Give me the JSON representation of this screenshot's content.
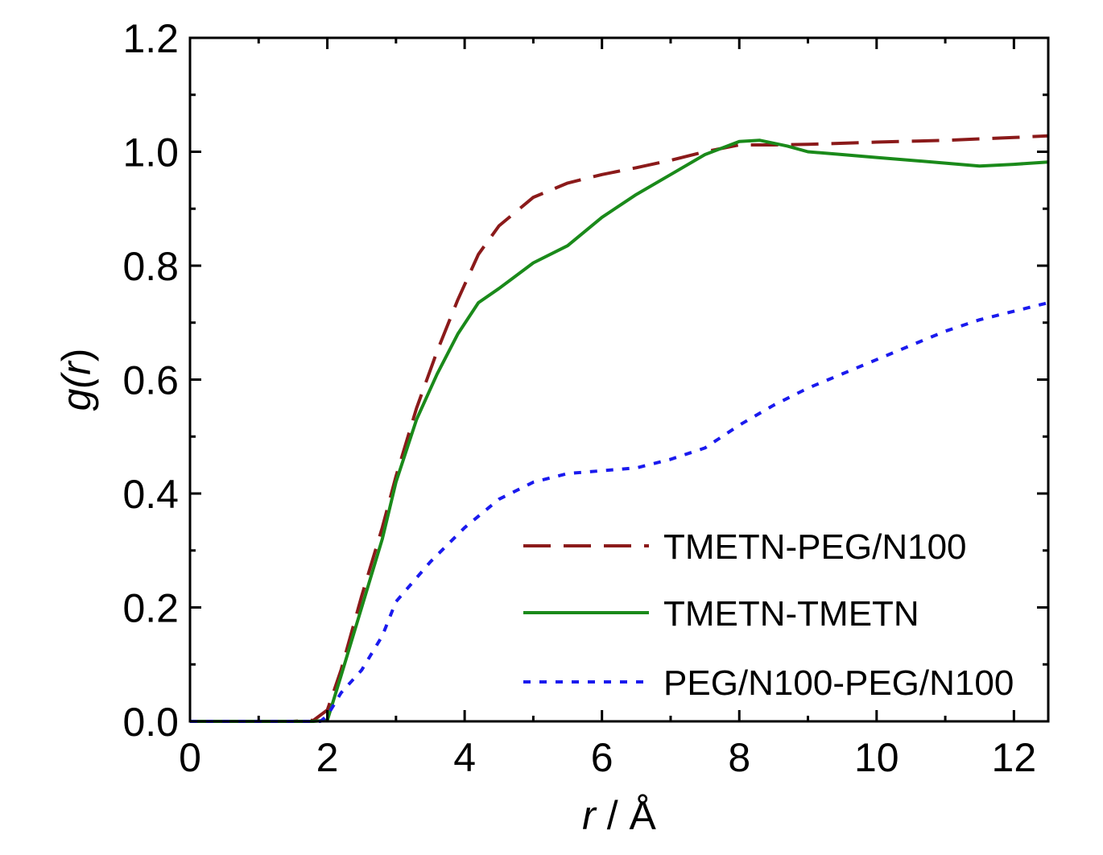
{
  "chart_data": {
    "type": "line",
    "title": "",
    "xlabel": {
      "var": "r",
      "rest": " / Å"
    },
    "ylabel": {
      "pre": "g(",
      "var": "r",
      "post": ")"
    },
    "xlim": [
      0,
      12.5
    ],
    "ylim": [
      0,
      1.2
    ],
    "xticks": [
      0,
      2,
      4,
      6,
      8,
      10,
      12
    ],
    "xtick_labels": [
      "0",
      "2",
      "4",
      "6",
      "8",
      "10",
      "12"
    ],
    "yticks": [
      0,
      0.2,
      0.4,
      0.6,
      0.8,
      1.0,
      1.2
    ],
    "ytick_labels": [
      "0.0",
      "0.2",
      "0.4",
      "0.6",
      "0.8",
      "1.0",
      "1.2"
    ],
    "grid": false,
    "legend_position": "lower-right",
    "series": [
      {
        "name": "TMETN-PEG/N100",
        "color": "#8b1a1a",
        "style": "dashed",
        "x": [
          0,
          1.5,
          1.8,
          2.0,
          2.2,
          2.5,
          2.8,
          3.0,
          3.3,
          3.6,
          3.9,
          4.2,
          4.5,
          5.0,
          5.5,
          6.0,
          6.5,
          7.0,
          7.5,
          8.0,
          8.5,
          9.0,
          10.0,
          11.0,
          12.0,
          12.5
        ],
        "y": [
          0,
          0,
          0.002,
          0.02,
          0.09,
          0.22,
          0.34,
          0.43,
          0.55,
          0.65,
          0.74,
          0.82,
          0.87,
          0.92,
          0.945,
          0.96,
          0.972,
          0.985,
          1.0,
          1.012,
          1.012,
          1.013,
          1.017,
          1.02,
          1.025,
          1.028
        ]
      },
      {
        "name": "TMETN-TMETN",
        "color": "#1a8a1a",
        "style": "solid",
        "x": [
          0,
          1.8,
          2.0,
          2.2,
          2.5,
          2.8,
          3.0,
          3.3,
          3.6,
          3.9,
          4.2,
          4.5,
          5.0,
          5.5,
          6.0,
          6.5,
          7.0,
          7.5,
          8.0,
          8.3,
          8.7,
          9.0,
          9.5,
          10.0,
          11.0,
          11.5,
          12.0,
          12.5
        ],
        "y": [
          0,
          0,
          0.002,
          0.08,
          0.2,
          0.32,
          0.42,
          0.53,
          0.61,
          0.68,
          0.735,
          0.76,
          0.805,
          0.835,
          0.885,
          0.925,
          0.96,
          0.995,
          1.018,
          1.02,
          1.01,
          1.0,
          0.995,
          0.99,
          0.98,
          0.975,
          0.978,
          0.982
        ]
      },
      {
        "name": "PEG/N100-PEG/N100",
        "color": "#1a1aee",
        "style": "dotted",
        "x": [
          0,
          1.9,
          2.0,
          2.2,
          2.5,
          2.8,
          3.0,
          3.5,
          4.0,
          4.5,
          5.0,
          5.5,
          6.0,
          6.5,
          7.0,
          7.5,
          8.0,
          8.5,
          9.0,
          9.5,
          10.0,
          10.5,
          11.0,
          11.5,
          12.0,
          12.5
        ],
        "y": [
          0,
          0,
          0.01,
          0.05,
          0.09,
          0.15,
          0.21,
          0.28,
          0.34,
          0.39,
          0.42,
          0.435,
          0.44,
          0.445,
          0.46,
          0.48,
          0.52,
          0.555,
          0.585,
          0.61,
          0.635,
          0.66,
          0.685,
          0.705,
          0.72,
          0.735
        ]
      }
    ]
  }
}
